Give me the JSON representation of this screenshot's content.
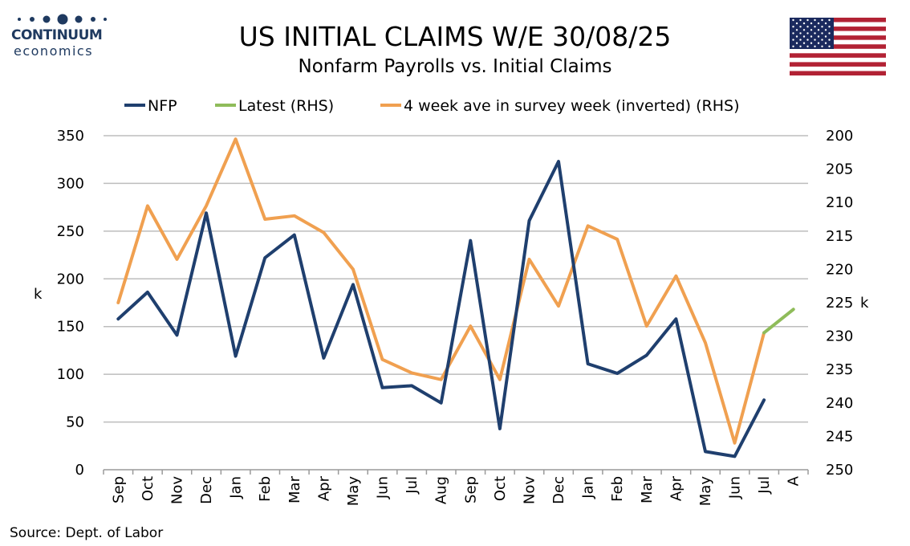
{
  "header": {
    "logo_name": "CONTINUUM",
    "logo_sub": "economics",
    "title": "US INITIAL CLAIMS W/E 30/08/25",
    "subtitle": "Nonfarm Payrolls vs. Initial Claims",
    "flag_icon": "us-flag-icon"
  },
  "footer": {
    "source": "Source: Dept. of Labor"
  },
  "colors": {
    "nfp": "#1f3f6e",
    "latest": "#8fbc5a",
    "inverted": "#f0a050",
    "grid": "#bdbdbd",
    "logo": "#1f3a60"
  },
  "chart_data": {
    "type": "line",
    "categories": [
      "Sep",
      "Oct",
      "Nov",
      "Dec",
      "Jan",
      "Feb",
      "Mar",
      "Apr",
      "May",
      "Jun",
      "Jul",
      "Aug",
      "Sep",
      "Oct",
      "Nov",
      "Dec",
      "Jan",
      "Feb",
      "Mar",
      "Apr",
      "May",
      "Jun",
      "Jul",
      "A"
    ],
    "series": [
      {
        "name": "NFP",
        "axis": "left",
        "color": "#1f3f6e",
        "values": [
          158,
          186,
          141,
          269,
          119,
          222,
          246,
          117,
          194,
          86,
          88,
          70,
          240,
          43,
          261,
          323,
          111,
          101,
          120,
          158,
          19,
          14,
          73,
          null
        ]
      },
      {
        "name": "Latest (RHS)",
        "axis": "right",
        "color": "#8fbc5a",
        "values": [
          null,
          null,
          null,
          null,
          null,
          null,
          null,
          null,
          null,
          null,
          null,
          null,
          null,
          null,
          null,
          null,
          null,
          null,
          null,
          null,
          null,
          null,
          229.5,
          226
        ]
      },
      {
        "name": "4 week ave in survey week (inverted) (RHS)",
        "axis": "right",
        "color": "#f0a050",
        "values": [
          225,
          210.5,
          218.5,
          210.5,
          200.5,
          212.5,
          212,
          214.5,
          220,
          233.5,
          235.5,
          236.5,
          228.5,
          236.5,
          218.5,
          225.5,
          213.5,
          215.5,
          228.5,
          221,
          231,
          246,
          229.5,
          null
        ]
      }
    ],
    "left_axis": {
      "label": "k",
      "ylim": [
        0,
        350
      ],
      "ticks": [
        "0",
        "50",
        "100",
        "150",
        "200",
        "250",
        "300",
        "350"
      ]
    },
    "right_axis": {
      "label": "k",
      "ylim": [
        200,
        250
      ],
      "inverted": true,
      "ticks": [
        "200",
        "205",
        "210",
        "215",
        "220",
        "225",
        "230",
        "235",
        "240",
        "245",
        "250"
      ]
    },
    "grid": true,
    "legend": "top"
  }
}
